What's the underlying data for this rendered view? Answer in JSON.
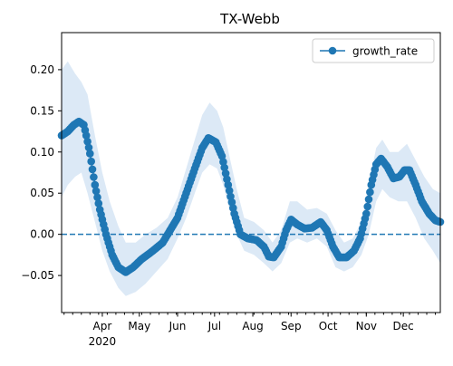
{
  "chart_data": {
    "type": "line",
    "title": "TX-Webb",
    "xlabel": "",
    "ylabel": "",
    "x_start": "2020-02-28",
    "x_end": "2020-12-31",
    "ylim": [
      -0.095,
      0.245
    ],
    "y_ticks": [
      -0.05,
      0.0,
      0.05,
      0.1,
      0.15,
      0.2
    ],
    "y_tick_labels": [
      "−0.05",
      "0.00",
      "0.05",
      "0.10",
      "0.15",
      "0.20"
    ],
    "x_month_ticks": [
      {
        "date": "2020-04-01",
        "label": "Apr"
      },
      {
        "date": "2020-05-01",
        "label": "May"
      },
      {
        "date": "2020-06-01",
        "label": "Jun"
      },
      {
        "date": "2020-07-01",
        "label": "Jul"
      },
      {
        "date": "2020-08-01",
        "label": "Aug"
      },
      {
        "date": "2020-09-01",
        "label": "Sep"
      },
      {
        "date": "2020-10-01",
        "label": "Oct"
      },
      {
        "date": "2020-11-01",
        "label": "Nov"
      },
      {
        "date": "2020-12-01",
        "label": "Dec"
      }
    ],
    "x_year_label": "2020",
    "legend": {
      "position": "upper right",
      "entries": [
        "growth_rate"
      ]
    },
    "reference_line": {
      "y": 0,
      "style": "dashed"
    },
    "series": [
      {
        "name": "growth_rate",
        "color": "#1f77b4",
        "band_color": "#dce9f6",
        "points": [
          [
            "2020-02-28",
            0.12
          ],
          [
            "2020-03-04",
            0.125
          ],
          [
            "2020-03-09",
            0.133
          ],
          [
            "2020-03-13",
            0.137
          ],
          [
            "2020-03-17",
            0.133
          ],
          [
            "2020-03-19",
            0.12
          ],
          [
            "2020-03-22",
            0.098
          ],
          [
            "2020-03-26",
            0.06
          ],
          [
            "2020-03-30",
            0.03
          ],
          [
            "2020-04-04",
            0.0
          ],
          [
            "2020-04-09",
            -0.025
          ],
          [
            "2020-04-14",
            -0.04
          ],
          [
            "2020-04-20",
            -0.046
          ],
          [
            "2020-04-26",
            -0.04
          ],
          [
            "2020-05-03",
            -0.03
          ],
          [
            "2020-05-12",
            -0.02
          ],
          [
            "2020-05-20",
            -0.01
          ],
          [
            "2020-05-26",
            0.005
          ],
          [
            "2020-06-01",
            0.02
          ],
          [
            "2020-06-08",
            0.05
          ],
          [
            "2020-06-15",
            0.08
          ],
          [
            "2020-06-21",
            0.105
          ],
          [
            "2020-06-26",
            0.117
          ],
          [
            "2020-07-02",
            0.112
          ],
          [
            "2020-07-07",
            0.095
          ],
          [
            "2020-07-12",
            0.06
          ],
          [
            "2020-07-17",
            0.025
          ],
          [
            "2020-07-22",
            0.0
          ],
          [
            "2020-07-28",
            -0.005
          ],
          [
            "2020-08-04",
            -0.007
          ],
          [
            "2020-08-10",
            -0.015
          ],
          [
            "2020-08-14",
            -0.027
          ],
          [
            "2020-08-18",
            -0.028
          ],
          [
            "2020-08-24",
            -0.015
          ],
          [
            "2020-08-28",
            0.005
          ],
          [
            "2020-09-01",
            0.018
          ],
          [
            "2020-09-06",
            0.012
          ],
          [
            "2020-09-12",
            0.007
          ],
          [
            "2020-09-18",
            0.008
          ],
          [
            "2020-09-25",
            0.015
          ],
          [
            "2020-09-30",
            0.005
          ],
          [
            "2020-10-05",
            -0.015
          ],
          [
            "2020-10-10",
            -0.028
          ],
          [
            "2020-10-16",
            -0.028
          ],
          [
            "2020-10-22",
            -0.02
          ],
          [
            "2020-10-27",
            -0.005
          ],
          [
            "2020-11-01",
            0.025
          ],
          [
            "2020-11-05",
            0.06
          ],
          [
            "2020-11-09",
            0.085
          ],
          [
            "2020-11-13",
            0.092
          ],
          [
            "2020-11-18",
            0.082
          ],
          [
            "2020-11-23",
            0.068
          ],
          [
            "2020-11-28",
            0.07
          ],
          [
            "2020-12-02",
            0.078
          ],
          [
            "2020-12-06",
            0.078
          ],
          [
            "2020-12-11",
            0.06
          ],
          [
            "2020-12-16",
            0.04
          ],
          [
            "2020-12-22",
            0.025
          ],
          [
            "2020-12-27",
            0.017
          ],
          [
            "2020-12-31",
            0.015
          ]
        ],
        "band": [
          [
            "2020-02-28",
            0.045,
            0.2
          ],
          [
            "2020-03-04",
            0.06,
            0.21
          ],
          [
            "2020-03-10",
            0.07,
            0.195
          ],
          [
            "2020-03-15",
            0.075,
            0.185
          ],
          [
            "2020-03-20",
            0.05,
            0.17
          ],
          [
            "2020-03-26",
            0.015,
            0.12
          ],
          [
            "2020-04-01",
            -0.02,
            0.075
          ],
          [
            "2020-04-07",
            -0.045,
            0.04
          ],
          [
            "2020-04-14",
            -0.065,
            0.01
          ],
          [
            "2020-04-20",
            -0.075,
            -0.01
          ],
          [
            "2020-04-28",
            -0.07,
            -0.01
          ],
          [
            "2020-05-06",
            -0.06,
            0.0
          ],
          [
            "2020-05-15",
            -0.045,
            0.008
          ],
          [
            "2020-05-24",
            -0.03,
            0.02
          ],
          [
            "2020-06-01",
            -0.005,
            0.045
          ],
          [
            "2020-06-08",
            0.02,
            0.08
          ],
          [
            "2020-06-15",
            0.05,
            0.115
          ],
          [
            "2020-06-21",
            0.075,
            0.145
          ],
          [
            "2020-06-27",
            0.085,
            0.16
          ],
          [
            "2020-07-03",
            0.08,
            0.15
          ],
          [
            "2020-07-08",
            0.06,
            0.13
          ],
          [
            "2020-07-13",
            0.03,
            0.095
          ],
          [
            "2020-07-19",
            0.0,
            0.055
          ],
          [
            "2020-07-25",
            -0.02,
            0.02
          ],
          [
            "2020-08-02",
            -0.025,
            0.015
          ],
          [
            "2020-08-10",
            -0.035,
            0.005
          ],
          [
            "2020-08-17",
            -0.045,
            -0.01
          ],
          [
            "2020-08-24",
            -0.035,
            0.005
          ],
          [
            "2020-08-31",
            -0.01,
            0.04
          ],
          [
            "2020-09-06",
            -0.005,
            0.04
          ],
          [
            "2020-09-14",
            -0.01,
            0.03
          ],
          [
            "2020-09-22",
            -0.005,
            0.032
          ],
          [
            "2020-09-30",
            -0.015,
            0.025
          ],
          [
            "2020-10-07",
            -0.04,
            0.005
          ],
          [
            "2020-10-14",
            -0.045,
            -0.01
          ],
          [
            "2020-10-21",
            -0.04,
            -0.005
          ],
          [
            "2020-10-28",
            -0.025,
            0.015
          ],
          [
            "2020-11-03",
            0.0,
            0.06
          ],
          [
            "2020-11-09",
            0.04,
            0.105
          ],
          [
            "2020-11-14",
            0.055,
            0.115
          ],
          [
            "2020-11-20",
            0.045,
            0.1
          ],
          [
            "2020-11-27",
            0.04,
            0.1
          ],
          [
            "2020-12-04",
            0.04,
            0.11
          ],
          [
            "2020-12-11",
            0.02,
            0.09
          ],
          [
            "2020-12-18",
            -0.005,
            0.07
          ],
          [
            "2020-12-25",
            -0.02,
            0.055
          ],
          [
            "2020-12-31",
            -0.035,
            0.05
          ]
        ]
      }
    ]
  }
}
